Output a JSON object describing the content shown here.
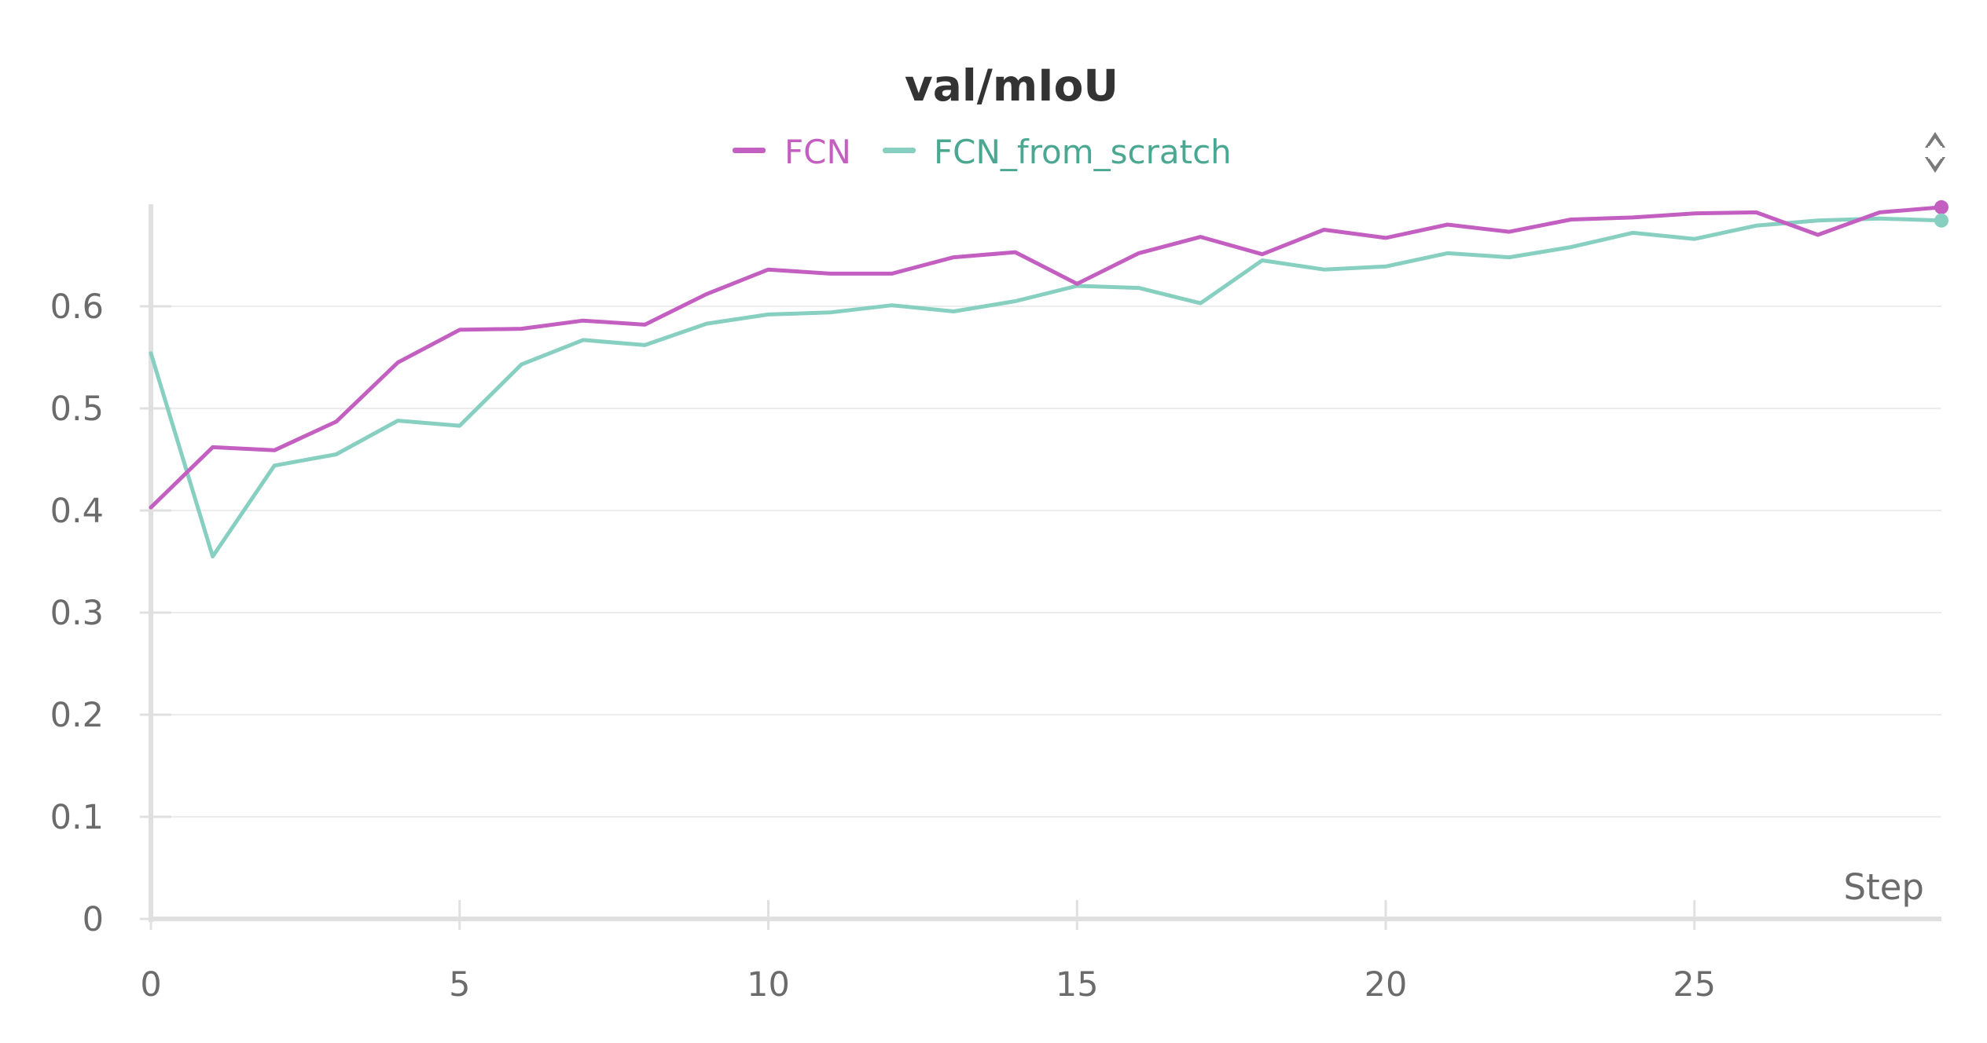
{
  "chart_data": {
    "type": "line",
    "title": "val/mIoU",
    "xlabel": "Step",
    "ylabel": "",
    "xlim": [
      0,
      29
    ],
    "ylim": [
      0,
      0.7
    ],
    "x_ticks": [
      0,
      5,
      10,
      15,
      20,
      25
    ],
    "y_ticks": [
      0,
      0.1,
      0.2,
      0.3,
      0.4,
      0.5,
      0.6
    ],
    "grid": true,
    "legend_position": "top-center",
    "x": [
      0,
      1,
      2,
      3,
      4,
      5,
      6,
      7,
      8,
      9,
      10,
      11,
      12,
      13,
      14,
      15,
      16,
      17,
      18,
      19,
      20,
      21,
      22,
      23,
      24,
      25,
      26,
      27,
      28,
      29
    ],
    "series": [
      {
        "name": "FCN",
        "color": "#c45fc2",
        "values": [
          0.403,
          0.462,
          0.459,
          0.487,
          0.545,
          0.577,
          0.578,
          0.586,
          0.582,
          0.612,
          0.636,
          0.632,
          0.632,
          0.648,
          0.653,
          0.622,
          0.652,
          0.668,
          0.651,
          0.675,
          0.667,
          0.68,
          0.673,
          0.685,
          0.687,
          0.691,
          0.692,
          0.67,
          0.692,
          0.697
        ]
      },
      {
        "name": "FCN_from_scratch",
        "color": "#87cfc1",
        "values": [
          0.554,
          0.355,
          0.444,
          0.455,
          0.488,
          0.483,
          0.543,
          0.567,
          0.562,
          0.583,
          0.592,
          0.594,
          0.601,
          0.595,
          0.605,
          0.62,
          0.618,
          0.603,
          0.645,
          0.636,
          0.639,
          0.652,
          0.648,
          0.658,
          0.672,
          0.666,
          0.679,
          0.684,
          0.686,
          0.684
        ]
      }
    ]
  },
  "legend_text_colors": [
    "#c45fc2",
    "#4aa892"
  ],
  "ui": {
    "axis_color": "#e0e0e0",
    "grid_color": "#ececec",
    "icons": {
      "panel_control": "resize-handle-icon"
    }
  }
}
